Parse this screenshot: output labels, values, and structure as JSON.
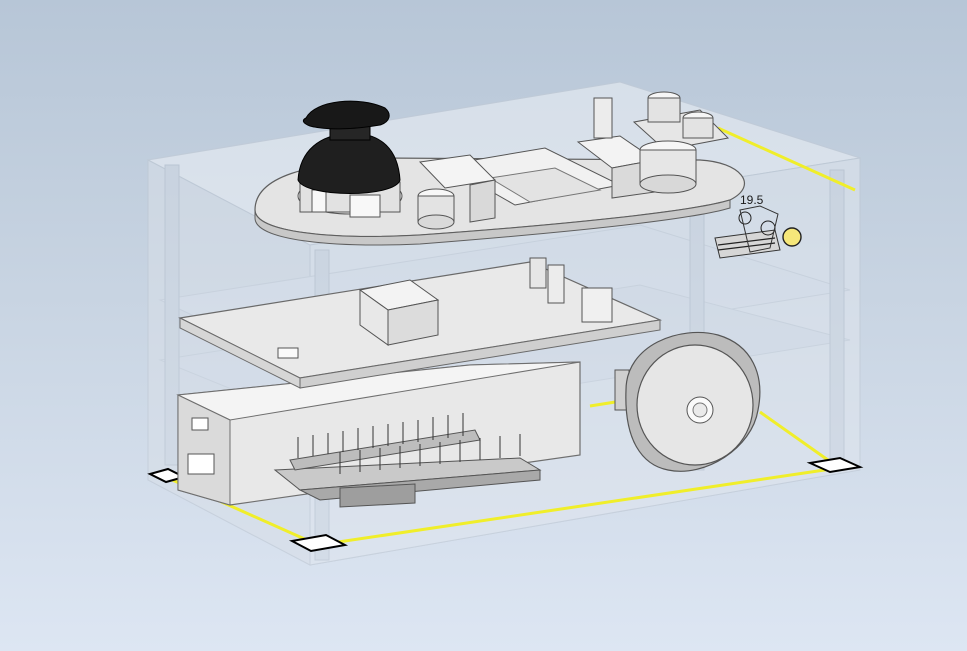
{
  "viewport": {
    "background_top": "#b7c6d7",
    "background_bottom": "#dde6f3",
    "selection_color": "#f0ee2a",
    "enclosure_color": "#e6ecf3"
  },
  "annotations": {
    "dimension_label": "19.5"
  }
}
